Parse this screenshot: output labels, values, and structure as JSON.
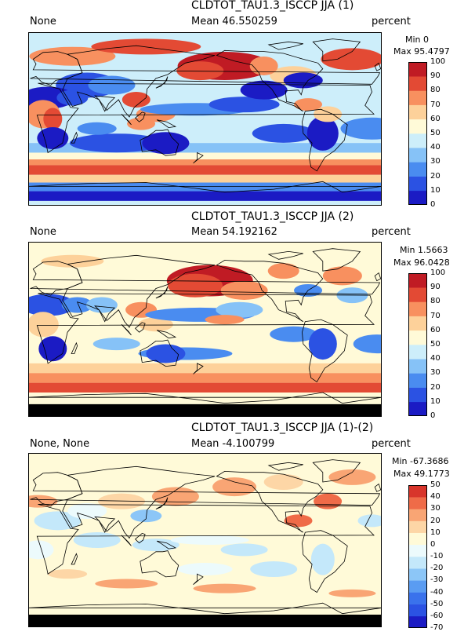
{
  "chart_data": [
    {
      "type": "heatmap",
      "title": "CLDTOT_TAU1.3_ISCCP JJA (1)",
      "left_label": "None",
      "mean_label": "Mean 46.550259",
      "units": "percent",
      "min_label": "Min 0",
      "max_label": "Max 95.4797",
      "colorbar": {
        "levels": [
          0,
          10,
          20,
          30,
          40,
          50,
          60,
          70,
          80,
          90,
          100
        ],
        "colors": [
          "#1b1bc4",
          "#2b52e3",
          "#4a8cf0",
          "#86c2f7",
          "#cdeefa",
          "#fffad8",
          "#fdd19a",
          "#f8905f",
          "#e34a34",
          "#c01b24"
        ]
      }
    },
    {
      "type": "heatmap",
      "title": "CLDTOT_TAU1.3_ISCCP JJA (2)",
      "left_label": "None",
      "mean_label": "Mean 54.192162",
      "units": "percent",
      "min_label": "Min 1.5663",
      "max_label": "Max 96.0428",
      "colorbar": {
        "levels": [
          0,
          10,
          20,
          30,
          40,
          50,
          60,
          70,
          80,
          90,
          100
        ],
        "colors": [
          "#1b1bc4",
          "#2b52e3",
          "#4a8cf0",
          "#86c2f7",
          "#cdeefa",
          "#fffad8",
          "#fdd19a",
          "#f8905f",
          "#e34a34",
          "#c01b24"
        ]
      }
    },
    {
      "type": "heatmap",
      "title": "CLDTOT_TAU1.3_ISCCP JJA (1)-(2)",
      "left_label": "None, None",
      "mean_label": "Mean -4.100799",
      "units": "percent",
      "min_label": "Min -67.3686",
      "max_label": "Max 49.1773",
      "colorbar": {
        "levels": [
          -70,
          -60,
          -50,
          -40,
          -30,
          -20,
          -10,
          0,
          10,
          20,
          30,
          40,
          50
        ],
        "colors": [
          "#1b1bc4",
          "#2b52e3",
          "#3a72ec",
          "#5a9cf2",
          "#8cc6f7",
          "#c4e8fa",
          "#ecfafc",
          "#fffad8",
          "#fdd6a6",
          "#f9a574",
          "#ef6b48",
          "#d8352b"
        ]
      }
    }
  ]
}
